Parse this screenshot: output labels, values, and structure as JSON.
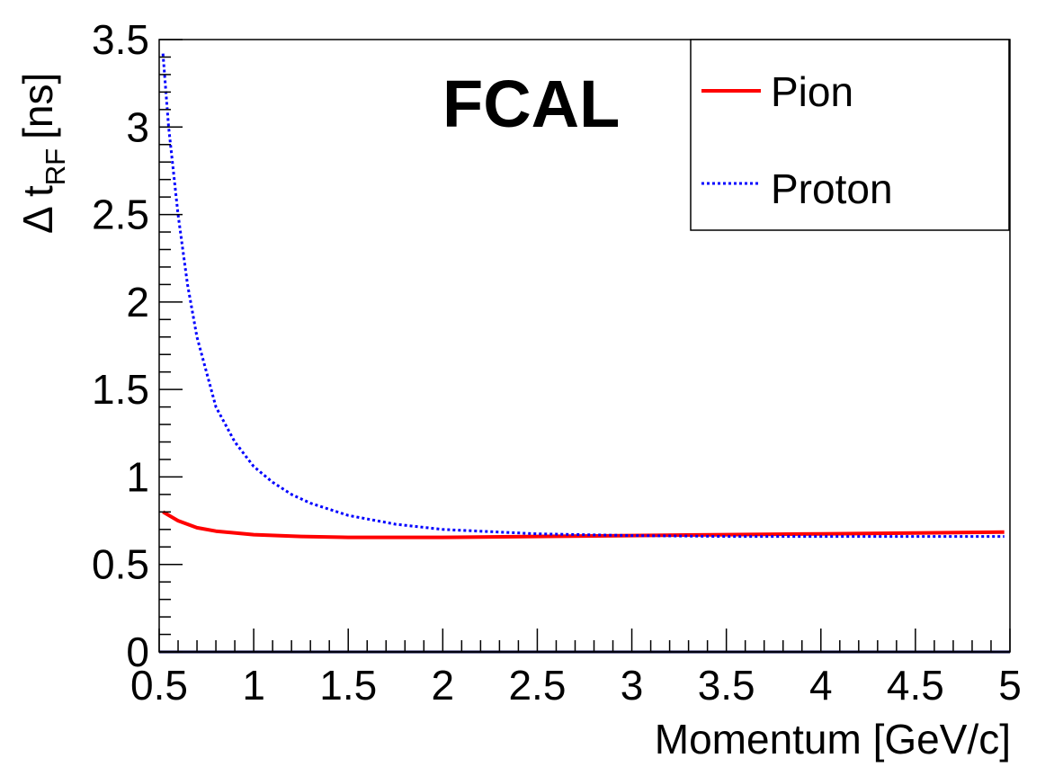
{
  "chart_data": {
    "type": "line",
    "annotation": "FCAL",
    "xlabel": "Momentum [GeV/c]",
    "ylabel": {
      "main": "Δ t",
      "sub": "RF",
      "unit": "[ns]"
    },
    "xlim": [
      0.5,
      5
    ],
    "ylim": [
      0,
      3.5
    ],
    "xticks": [
      "0.5",
      "1",
      "1.5",
      "2",
      "2.5",
      "3",
      "3.5",
      "4",
      "4.5",
      "5"
    ],
    "yticks": [
      "0",
      "0.5",
      "1",
      "1.5",
      "2",
      "2.5",
      "3",
      "3.5"
    ],
    "legend_position": "top-right",
    "series": [
      {
        "name": "Pion",
        "color": "#ff0000",
        "style": "solid",
        "x": [
          0.52,
          0.6,
          0.7,
          0.8,
          1.0,
          1.25,
          1.5,
          2.0,
          2.5,
          3.0,
          3.5,
          4.0,
          4.5,
          4.97
        ],
        "y": [
          0.8,
          0.75,
          0.71,
          0.69,
          0.67,
          0.66,
          0.655,
          0.655,
          0.66,
          0.665,
          0.67,
          0.675,
          0.68,
          0.685
        ]
      },
      {
        "name": "Proton",
        "color": "#0000ff",
        "style": "dotted",
        "x": [
          0.52,
          0.55,
          0.6,
          0.65,
          0.7,
          0.8,
          0.9,
          1.0,
          1.1,
          1.2,
          1.3,
          1.5,
          1.75,
          2.0,
          2.5,
          3.0,
          3.5,
          4.0,
          4.5,
          4.97
        ],
        "y": [
          3.42,
          3.0,
          2.5,
          2.1,
          1.8,
          1.4,
          1.2,
          1.06,
          0.97,
          0.9,
          0.85,
          0.78,
          0.73,
          0.7,
          0.675,
          0.665,
          0.66,
          0.66,
          0.66,
          0.66
        ]
      }
    ]
  }
}
